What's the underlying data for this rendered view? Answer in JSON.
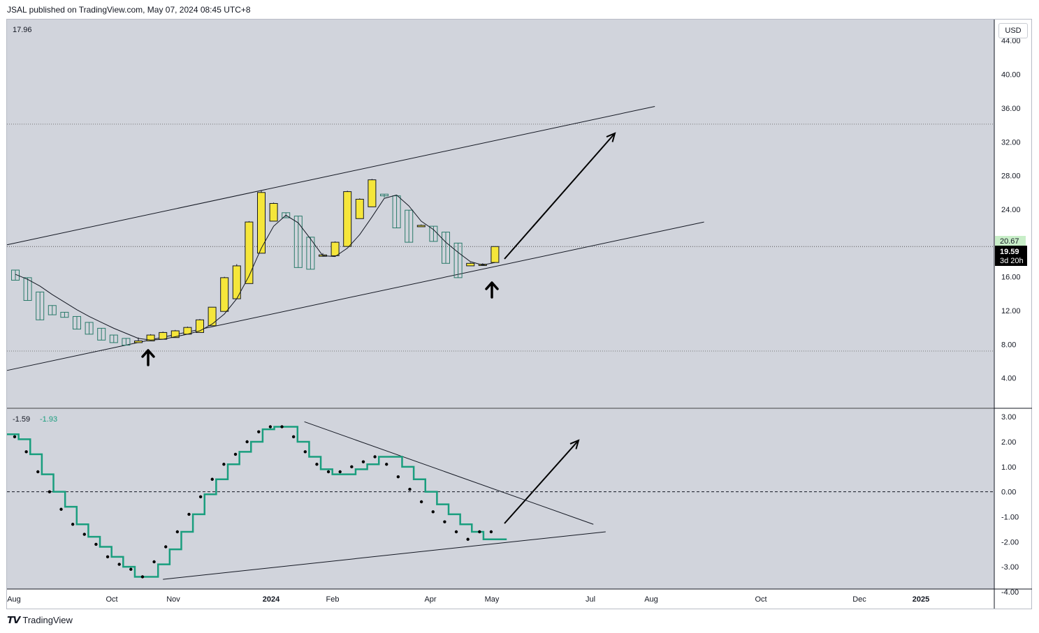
{
  "header": {
    "text": "JSAL published on TradingView.com, May 07, 2024 08:45 UTC+8"
  },
  "footer": {
    "logo": "𝙏𝙑",
    "label": "TradingView"
  },
  "toolbar": {
    "currency": "USD"
  },
  "colors": {
    "background": "#d1d4dc",
    "up_candle": "#f5e63b",
    "down_candle_border": "#2a7a6a",
    "oscillator": "#1a9e7e",
    "price_tag": "#c8eec8",
    "current_tag": "#000000"
  },
  "price_panel": {
    "top_left_value": "17.96",
    "price_tag": "20.67",
    "current_price": "19.59",
    "countdown": "3d 20h"
  },
  "osc_panel": {
    "value1": "-1.59",
    "value2": "-1.93"
  },
  "chart_data": [
    {
      "type": "candlestick",
      "title": "",
      "x_axis": {
        "ticks": [
          "Aug",
          "Oct",
          "Nov",
          "2024",
          "Feb",
          "Apr",
          "May",
          "Jul",
          "Aug",
          "Oct",
          "Dec",
          "2025"
        ]
      },
      "y_axis": {
        "ticks": [
          "44.00",
          "40.00",
          "36.00",
          "32.00",
          "28.00",
          "24.00",
          "20.00",
          "16.00",
          "12.00",
          "8.00",
          "4.00"
        ],
        "range": [
          0.5,
          46.5
        ]
      },
      "candles": [
        {
          "o": 16.8,
          "h": 16.8,
          "l": 15.6,
          "c": 15.6
        },
        {
          "o": 15.9,
          "h": 15.9,
          "l": 13.2,
          "c": 13.2
        },
        {
          "o": 14.2,
          "h": 14.2,
          "l": 10.9,
          "c": 10.9
        },
        {
          "o": 12.6,
          "h": 12.6,
          "l": 11.5,
          "c": 11.5
        },
        {
          "o": 11.8,
          "h": 11.8,
          "l": 11.2,
          "c": 11.2
        },
        {
          "o": 11.3,
          "h": 11.3,
          "l": 9.8,
          "c": 9.8
        },
        {
          "o": 10.6,
          "h": 10.6,
          "l": 9.2,
          "c": 9.2
        },
        {
          "o": 9.9,
          "h": 9.9,
          "l": 8.5,
          "c": 8.5
        },
        {
          "o": 9.1,
          "h": 9.1,
          "l": 8.2,
          "c": 8.2
        },
        {
          "o": 8.7,
          "h": 8.7,
          "l": 7.9,
          "c": 7.9
        },
        {
          "o": 8.2,
          "h": 8.8,
          "l": 8.2,
          "c": 8.4
        },
        {
          "o": 8.4,
          "h": 9.2,
          "l": 8.4,
          "c": 9.1
        },
        {
          "o": 8.6,
          "h": 9.5,
          "l": 8.6,
          "c": 9.4
        },
        {
          "o": 8.8,
          "h": 9.7,
          "l": 8.8,
          "c": 9.6
        },
        {
          "o": 9.2,
          "h": 10.1,
          "l": 9.2,
          "c": 10.0
        },
        {
          "o": 9.4,
          "h": 11.0,
          "l": 9.4,
          "c": 10.9
        },
        {
          "o": 10.2,
          "h": 12.4,
          "l": 10.2,
          "c": 12.4
        },
        {
          "o": 11.9,
          "h": 16.0,
          "l": 11.9,
          "c": 15.9
        },
        {
          "o": 13.4,
          "h": 17.5,
          "l": 13.4,
          "c": 17.3
        },
        {
          "o": 15.2,
          "h": 22.6,
          "l": 15.2,
          "c": 22.5
        },
        {
          "o": 18.8,
          "h": 26.2,
          "l": 18.8,
          "c": 26.0
        },
        {
          "o": 22.6,
          "h": 24.8,
          "l": 22.6,
          "c": 24.7
        },
        {
          "o": 23.6,
          "h": 23.6,
          "l": 23.0,
          "c": 23.0
        },
        {
          "o": 23.2,
          "h": 23.2,
          "l": 17.1,
          "c": 17.1
        },
        {
          "o": 20.7,
          "h": 20.7,
          "l": 16.9,
          "c": 16.9
        },
        {
          "o": 18.6,
          "h": 18.8,
          "l": 18.4,
          "c": 18.6
        },
        {
          "o": 18.5,
          "h": 20.2,
          "l": 18.5,
          "c": 20.1
        },
        {
          "o": 19.6,
          "h": 26.2,
          "l": 19.6,
          "c": 26.1
        },
        {
          "o": 22.9,
          "h": 25.3,
          "l": 22.9,
          "c": 25.2
        },
        {
          "o": 24.3,
          "h": 27.6,
          "l": 24.3,
          "c": 27.5
        },
        {
          "o": 25.8,
          "h": 25.8,
          "l": 25.4,
          "c": 25.6
        },
        {
          "o": 25.6,
          "h": 25.6,
          "l": 21.8,
          "c": 21.8
        },
        {
          "o": 23.9,
          "h": 23.9,
          "l": 20.1,
          "c": 20.1
        },
        {
          "o": 22.1,
          "h": 22.2,
          "l": 22.0,
          "c": 22.1
        },
        {
          "o": 22.0,
          "h": 22.0,
          "l": 20.2,
          "c": 20.2
        },
        {
          "o": 21.3,
          "h": 21.3,
          "l": 17.6,
          "c": 17.6
        },
        {
          "o": 20.0,
          "h": 20.0,
          "l": 15.9,
          "c": 15.9
        },
        {
          "o": 17.3,
          "h": 17.7,
          "l": 17.3,
          "c": 17.6
        },
        {
          "o": 17.4,
          "h": 17.6,
          "l": 17.3,
          "c": 17.5
        },
        {
          "o": 17.7,
          "h": 19.6,
          "l": 17.7,
          "c": 19.59
        }
      ],
      "moving_average": [
        16.3,
        15.7,
        14.9,
        13.9,
        13.0,
        12.1,
        11.3,
        10.6,
        9.9,
        9.3,
        8.7,
        8.5,
        8.6,
        8.9,
        9.2,
        9.6,
        10.4,
        11.6,
        13.4,
        16.1,
        19.4,
        22.0,
        23.3,
        22.4,
        20.5,
        18.5,
        18.4,
        19.4,
        21.0,
        23.1,
        25.3,
        25.7,
        24.4,
        22.6,
        21.6,
        20.1,
        18.9,
        17.8,
        17.4,
        17.7
      ],
      "horizontal_levels": [
        34.1,
        7.2,
        19.59
      ]
    },
    {
      "type": "line",
      "title": "",
      "y_axis": {
        "ticks": [
          "3.00",
          "2.00",
          "1.00",
          "0.00",
          "-1.00",
          "-2.00",
          "-3.00",
          "-4.00"
        ],
        "range": [
          -4.0,
          3.2
        ]
      },
      "series": [
        {
          "name": "",
          "values": [
            2.3,
            2.1,
            1.5,
            0.7,
            0.0,
            -0.6,
            -1.3,
            -1.8,
            -2.2,
            -2.6,
            -3.0,
            -3.4,
            -3.4,
            -2.9,
            -2.3,
            -1.6,
            -0.9,
            -0.1,
            0.5,
            1.1,
            1.6,
            2.0,
            2.5,
            2.6,
            2.6,
            2.0,
            1.4,
            0.9,
            0.7,
            0.7,
            0.9,
            1.1,
            1.4,
            1.4,
            1.0,
            0.5,
            0.0,
            -0.5,
            -0.9,
            -1.3,
            -1.6,
            -1.9,
            -1.9
          ]
        },
        {
          "name": "",
          "values": [
            2.2,
            1.6,
            0.8,
            0.0,
            -0.7,
            -1.3,
            -1.7,
            -2.1,
            -2.6,
            -2.9,
            -3.1,
            -3.4,
            -2.8,
            -2.2,
            -1.6,
            -0.9,
            -0.2,
            0.5,
            1.1,
            1.5,
            2.0,
            2.4,
            2.6,
            2.6,
            2.2,
            1.6,
            1.1,
            0.8,
            0.8,
            1.0,
            1.2,
            1.4,
            1.1,
            0.6,
            0.1,
            -0.4,
            -0.8,
            -1.2,
            -1.6,
            -1.9,
            -1.6,
            -1.6
          ]
        }
      ]
    }
  ],
  "annotations": {
    "price_channel": {
      "upper": [
        [
          0,
          19.8
        ],
        [
          52,
          36.2
        ]
      ],
      "lower": [
        [
          0,
          4.9
        ],
        [
          56,
          22.5
        ]
      ]
    },
    "osc_trendlines": {
      "upper": [
        [
          23.5,
          2.8
        ],
        [
          47,
          -1.3
        ]
      ],
      "lower": [
        [
          12,
          -3.5
        ],
        [
          48,
          -1.6
        ]
      ]
    }
  }
}
